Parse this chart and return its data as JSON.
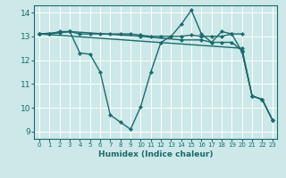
{
  "bg_color": "#cce8e8",
  "grid_color": "#ffffff",
  "line_color": "#1a6b6b",
  "xlabel": "Humidex (Indice chaleur)",
  "xlim": [
    -0.5,
    23.5
  ],
  "ylim": [
    8.7,
    14.3
  ],
  "yticks": [
    9,
    10,
    11,
    12,
    13,
    14
  ],
  "xticks": [
    0,
    1,
    2,
    3,
    4,
    5,
    6,
    7,
    8,
    9,
    10,
    11,
    12,
    13,
    14,
    15,
    16,
    17,
    18,
    19,
    20,
    21,
    22,
    23
  ],
  "series": [
    {
      "x": [
        0,
        1,
        2,
        3,
        4,
        5,
        6,
        7,
        8,
        9,
        10,
        11,
        12,
        13,
        14,
        15,
        16,
        17,
        18,
        19,
        20
      ],
      "y": [
        13.1,
        13.1,
        13.2,
        13.2,
        13.1,
        13.1,
        13.1,
        13.1,
        13.1,
        13.1,
        13.05,
        13.0,
        13.0,
        13.0,
        13.0,
        13.05,
        13.0,
        13.0,
        13.0,
        13.1,
        13.1
      ]
    },
    {
      "x": [
        0,
        1,
        2,
        3,
        4,
        5,
        6,
        7,
        8,
        9,
        10,
        11,
        12,
        13,
        14,
        15,
        16,
        17,
        18,
        19,
        20,
        21,
        22,
        23
      ],
      "y": [
        13.1,
        13.1,
        13.15,
        13.2,
        12.3,
        12.25,
        11.5,
        9.7,
        9.4,
        9.1,
        10.05,
        11.5,
        12.75,
        13.0,
        13.5,
        14.1,
        13.1,
        12.75,
        13.2,
        13.1,
        12.35,
        10.5,
        10.35,
        9.5
      ]
    },
    {
      "x": [
        0,
        3,
        10,
        14,
        16,
        17,
        18,
        19,
        20,
        21,
        22,
        23
      ],
      "y": [
        13.1,
        13.2,
        13.0,
        12.85,
        12.85,
        12.75,
        12.75,
        12.75,
        12.4,
        10.5,
        10.35,
        9.5
      ]
    },
    {
      "x": [
        0,
        20,
        21,
        22,
        23
      ],
      "y": [
        13.1,
        12.5,
        10.5,
        10.35,
        9.5
      ]
    }
  ]
}
